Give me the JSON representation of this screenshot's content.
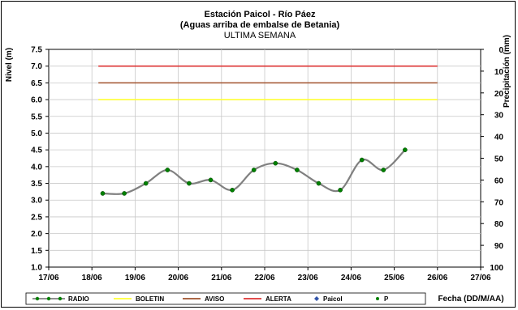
{
  "chart_data": {
    "type": "line",
    "title": "Estación Paicol - Río Páez",
    "subtitle": "(Aguas arriba de embalse de Betania)",
    "subtitle2": "ULTIMA SEMANA",
    "ylabel": "Nivel (m)",
    "y2label": "Precipitación (mm)",
    "xlabel": "Fecha  (DD/M/AA)",
    "ylim": [
      1.0,
      7.5
    ],
    "y2lim": [
      0,
      100
    ],
    "y_ticks": [
      "1.0",
      "1.5",
      "2.0",
      "2.5",
      "3.0",
      "3.5",
      "4.0",
      "4.5",
      "5.0",
      "5.5",
      "6.0",
      "6.5",
      "7.0",
      "7.5"
    ],
    "y2_ticks": [
      "0",
      "10",
      "20",
      "30",
      "40",
      "50",
      "60",
      "70",
      "80",
      "90",
      "100"
    ],
    "x_ticks": [
      "17/06",
      "18/06",
      "19/06",
      "20/06",
      "21/06",
      "22/06",
      "23/06",
      "24/06",
      "25/06",
      "26/06",
      "27/06"
    ],
    "grid": true,
    "thresholds": [
      {
        "name": "BOLETIN",
        "value": 6.0,
        "color": "#ffff33"
      },
      {
        "name": "AVISO",
        "value": 6.5,
        "color": "#a0522d"
      },
      {
        "name": "ALERTA",
        "value": 7.0,
        "color": "#dd3333"
      }
    ],
    "series": [
      {
        "name": "RADIO",
        "color": "#808080",
        "marker_color": "#008000",
        "x": [
          18.25,
          18.75,
          19.25,
          19.75,
          20.25,
          20.75,
          21.25,
          21.75,
          22.25,
          22.75,
          23.25,
          23.75,
          24.25,
          24.75,
          25.25
        ],
        "y": [
          3.2,
          3.2,
          3.5,
          3.9,
          3.5,
          3.6,
          3.3,
          3.9,
          4.1,
          3.9,
          3.5,
          3.3,
          4.2,
          3.9,
          4.5
        ]
      }
    ],
    "threshold_x_range": [
      18.15,
      26.0
    ],
    "legend": {
      "placement": "bottom",
      "entries": [
        {
          "label": "RADIO",
          "kind": "line-marker",
          "color": "#808080",
          "marker": "#008000"
        },
        {
          "label": "BOLETIN",
          "kind": "line",
          "color": "#ffff33"
        },
        {
          "label": "AVISO",
          "kind": "line",
          "color": "#a0522d"
        },
        {
          "label": "ALERTA",
          "kind": "line",
          "color": "#dd3333"
        },
        {
          "label": "Paicol",
          "kind": "diamond",
          "color": "#3355aa"
        },
        {
          "label": "P",
          "kind": "dot",
          "color": "#008000"
        }
      ]
    }
  }
}
